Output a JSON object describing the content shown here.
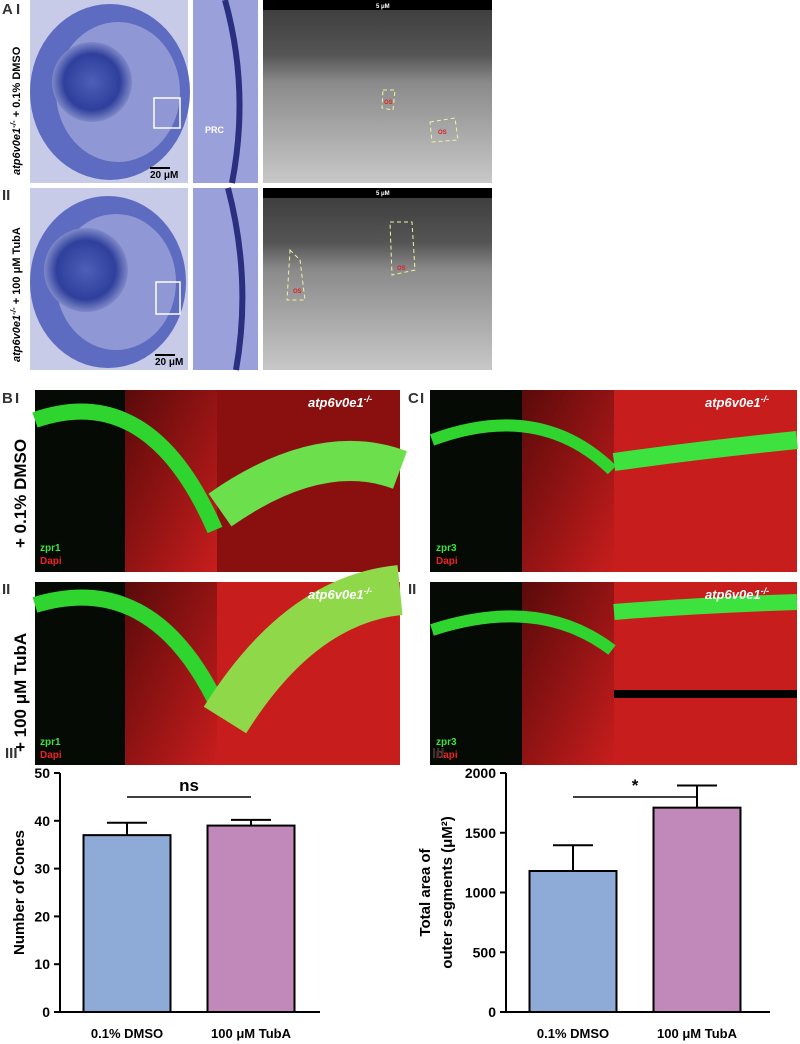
{
  "panels": {
    "A": {
      "label": "A",
      "rows": [
        {
          "label": "I",
          "genotype": "atp6v0e1",
          "superscript": "-/-",
          "treatment": " + 0.1% DMSO",
          "scale_light": "20 μM",
          "scale_em": "5 μM",
          "prc": "PRC",
          "os": [
            "OS",
            "OS"
          ]
        },
        {
          "label": "II",
          "genotype": "atp6v0e1",
          "superscript": "-/-",
          "treatment": " + 100 μM TubA",
          "scale_light": "20 μM",
          "scale_em": "5 μM",
          "os": [
            "OS",
            "OS"
          ]
        }
      ]
    },
    "B": {
      "label": "B",
      "rows": [
        {
          "label": "I",
          "treatment": "+ 0.1% DMSO",
          "genotype": "atp6v0e1",
          "superscript": "-/-",
          "stain1": "zpr1",
          "stain2": "Dapi"
        },
        {
          "label": "II",
          "treatment": "+ 100 μM TubA",
          "genotype": "atp6v0e1",
          "superscript": "-/-",
          "stain1": "zpr1",
          "stain2": "Dapi"
        }
      ]
    },
    "C": {
      "label": "C",
      "rows": [
        {
          "label": "I",
          "genotype": "atp6v0e1",
          "superscript": "-/-",
          "stain1": "zpr3",
          "stain2": "Dapi"
        },
        {
          "label": "II",
          "genotype": "atp6v0e1",
          "superscript": "-/-",
          "stain1": "zpr3",
          "stain2": "Dapi"
        }
      ]
    }
  },
  "chart_data": [
    {
      "type": "bar",
      "panel_label": "III",
      "ylabel": [
        "Number of Cones"
      ],
      "categories": [
        "0.1% DMSO",
        "100 μM TubA"
      ],
      "values": [
        37,
        39
      ],
      "errors": [
        2.6,
        1.2
      ],
      "colors": [
        "#8eaad6",
        "#c089b9"
      ],
      "ylim": [
        0,
        50
      ],
      "yticks": [
        0,
        10,
        20,
        30,
        40,
        50
      ],
      "annotation": "ns"
    },
    {
      "type": "bar",
      "panel_label": "III",
      "ylabel": [
        "Total area of",
        "outer segments (μM²)"
      ],
      "categories": [
        "0.1% DMSO",
        "100 μM TubA"
      ],
      "values": [
        1180,
        1710
      ],
      "errors": [
        215,
        185
      ],
      "colors": [
        "#8eaad6",
        "#c089b9"
      ],
      "ylim": [
        0,
        2000
      ],
      "yticks": [
        0,
        500,
        1000,
        1500,
        2000
      ],
      "annotation": "*"
    }
  ]
}
